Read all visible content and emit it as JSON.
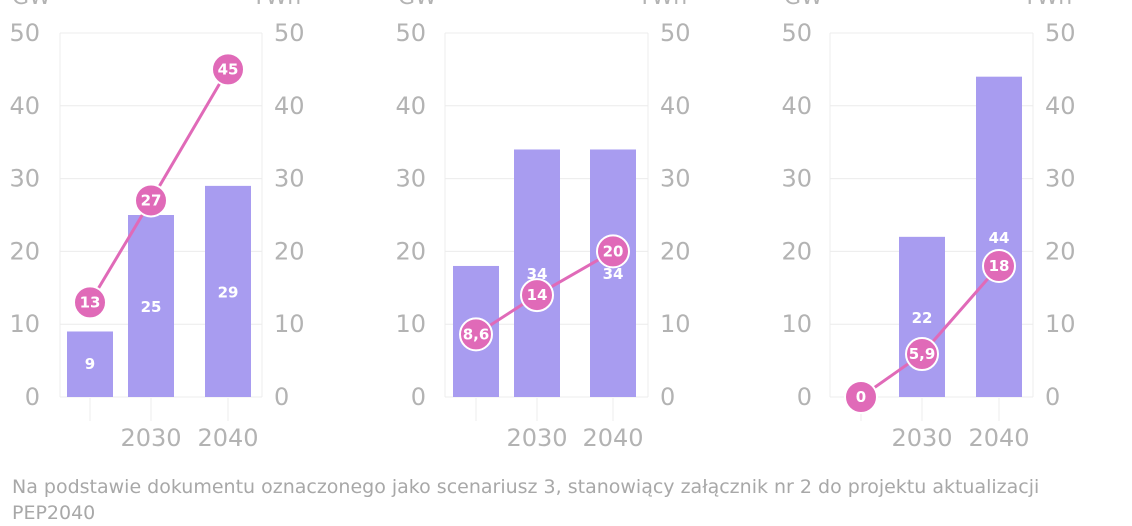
{
  "chart_data": [
    {
      "type": "bar+line",
      "categories": [
        "",
        "2030",
        "2040"
      ],
      "bars": [
        9,
        25,
        29
      ],
      "line": [
        13,
        27,
        45
      ],
      "line_labels": [
        "13",
        "27",
        "45"
      ],
      "bar_labels": [
        "9",
        "25",
        "29"
      ],
      "ylim": [
        0,
        50
      ],
      "yticks": [
        0,
        10,
        20,
        30,
        40,
        50
      ],
      "y_left_unit": "GW",
      "y_right_unit": "TWh"
    },
    {
      "type": "bar+line",
      "categories": [
        "",
        "2030",
        "2040"
      ],
      "bars": [
        18,
        34,
        34
      ],
      "line": [
        8.6,
        14,
        20
      ],
      "line_labels": [
        "8,6",
        "14",
        "20"
      ],
      "bar_labels": [
        "18",
        "34",
        "34"
      ],
      "ylim": [
        0,
        50
      ],
      "yticks": [
        0,
        10,
        20,
        30,
        40,
        50
      ],
      "y_left_unit": "GW",
      "y_right_unit": "TWh"
    },
    {
      "type": "bar+line",
      "categories": [
        "",
        "2030",
        "2040"
      ],
      "bars": [
        0,
        22,
        44
      ],
      "line": [
        0,
        5.9,
        18
      ],
      "line_labels": [
        "0",
        "5,9",
        "18"
      ],
      "bar_labels": [
        "",
        "22",
        "44"
      ],
      "ylim": [
        0,
        50
      ],
      "yticks": [
        0,
        10,
        20,
        30,
        40,
        50
      ],
      "y_left_unit": "GW",
      "y_right_unit": "TWh"
    }
  ],
  "colors": {
    "bar": "#a89cf0",
    "line": "#e06ab8",
    "point": "#e06ab8",
    "grid": "#ececec",
    "axis_text": "#b3b3b3"
  },
  "footnote": "Na podstawie dokumentu oznaczonego jako scenariusz 3, stanowiący załącznik nr 2 do projektu aktualizacji PEP2040"
}
